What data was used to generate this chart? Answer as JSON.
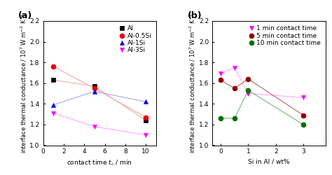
{
  "panel_a": {
    "label": "(a)",
    "xlabel": "contact time $t_c$ / min",
    "ylabel": "interface thermal conductance / 10$^{7}$ W m$^{-2}$ K$^{-1}$",
    "xlim": [
      0,
      11
    ],
    "ylim": [
      1.0,
      2.2
    ],
    "xticks": [
      0,
      2,
      4,
      6,
      8,
      10
    ],
    "yticks": [
      1.0,
      1.2,
      1.4,
      1.6,
      1.8,
      2.0,
      2.2
    ],
    "series": [
      {
        "label": "Al",
        "x": [
          1,
          5,
          10
        ],
        "y": [
          1.63,
          1.57,
          1.24
        ],
        "color": "black",
        "line_color": "#e8b8b8",
        "marker": "s",
        "markersize": 5
      },
      {
        "label": "Al-0.5Si",
        "x": [
          1,
          5,
          10
        ],
        "y": [
          1.76,
          1.55,
          1.27
        ],
        "color": "#e8000d",
        "line_color": "#f0b0b0",
        "marker": "o",
        "markersize": 5
      },
      {
        "label": "Al-1Si",
        "x": [
          1,
          5,
          10
        ],
        "y": [
          1.39,
          1.52,
          1.42
        ],
        "color": "#0000ee",
        "line_color": "#b0b0f0",
        "marker": "^",
        "markersize": 5
      },
      {
        "label": "Al-3Si",
        "x": [
          1,
          5,
          10
        ],
        "y": [
          1.31,
          1.18,
          1.1
        ],
        "color": "#ff00ff",
        "line_color": "#ffb0ff",
        "marker": "v",
        "markersize": 5
      }
    ],
    "legend_fontsize": 6.5
  },
  "panel_b": {
    "label": "(b)",
    "xlabel": "Si in Al / wt%",
    "ylabel": "interface thermal conductance / 10$^{7}$ W m$^{-2}$ K$^{-1}$",
    "xlim": [
      -0.3,
      3.8
    ],
    "ylim": [
      1.0,
      2.2
    ],
    "xticks": [
      0,
      1,
      2,
      3
    ],
    "yticks": [
      1.0,
      1.2,
      1.4,
      1.6,
      1.8,
      2.0,
      2.2
    ],
    "series": [
      {
        "label": "1 min contact time",
        "x": [
          0,
          0.5,
          1,
          3
        ],
        "y": [
          1.69,
          1.75,
          1.5,
          1.46
        ],
        "color": "#ff00ff",
        "line_color": "#ffb0ff",
        "marker": "v",
        "markersize": 5
      },
      {
        "label": "5 min contact time",
        "x": [
          0,
          0.5,
          1,
          3
        ],
        "y": [
          1.63,
          1.55,
          1.64,
          1.29
        ],
        "color": "#8b0000",
        "line_color": "#c07070",
        "marker": "o",
        "markersize": 5
      },
      {
        "label": "10 min contact time",
        "x": [
          0,
          0.5,
          1,
          3
        ],
        "y": [
          1.26,
          1.26,
          1.53,
          1.2
        ],
        "color": "#007000",
        "line_color": "#80c080",
        "marker": "o",
        "markersize": 5
      }
    ],
    "legend_fontsize": 6.5
  }
}
